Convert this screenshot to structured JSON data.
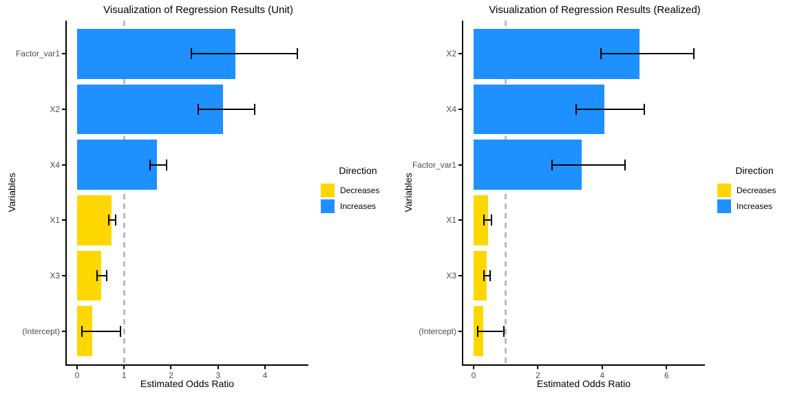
{
  "colors": {
    "increases": "#1E90FF",
    "decreases": "#FFD700",
    "reference_line": "#BBBBBB",
    "axis": "#000000",
    "tick_label": "#4D4D4D"
  },
  "legend": {
    "title": "Direction",
    "entries": [
      {
        "label": "Decreases",
        "direction": "decreases"
      },
      {
        "label": "Increases",
        "direction": "increases"
      }
    ]
  },
  "chart_data": [
    {
      "type": "bar",
      "orientation": "horizontal",
      "title": "Visualization of Regression Results (Unit)",
      "xlabel": "Estimated Odds Ratio",
      "ylabel": "Variables",
      "grid": false,
      "legend_position": "right",
      "reference_line_x": 1,
      "x_ticks": [
        0,
        1,
        2,
        3,
        4
      ],
      "xlim": [
        0,
        4.69
      ],
      "categories": [
        "Factor_var1",
        "X2",
        "X4",
        "X1",
        "X3",
        "(Intercept)"
      ],
      "values": [
        3.37,
        3.1,
        1.7,
        0.74,
        0.52,
        0.32
      ],
      "ci_low": [
        2.44,
        2.58,
        1.55,
        0.68,
        0.43,
        0.1
      ],
      "ci_high": [
        4.69,
        3.78,
        1.9,
        0.82,
        0.63,
        0.93
      ],
      "directions": [
        "increases",
        "increases",
        "increases",
        "decreases",
        "decreases",
        "decreases"
      ]
    },
    {
      "type": "bar",
      "orientation": "horizontal",
      "title": "Visualization of Regression Results (Realized)",
      "xlabel": "Estimated Odds Ratio",
      "ylabel": "Variables",
      "grid": false,
      "legend_position": "right",
      "reference_line_x": 1,
      "x_ticks": [
        0,
        2,
        4,
        6
      ],
      "xlim": [
        0,
        6.85
      ],
      "categories": [
        "X2",
        "X4",
        "Factor_var1",
        "X1",
        "X3",
        "(Intercept)"
      ],
      "values": [
        5.16,
        4.07,
        3.37,
        0.45,
        0.41,
        0.31
      ],
      "ci_low": [
        3.96,
        3.19,
        2.45,
        0.32,
        0.32,
        0.12
      ],
      "ci_high": [
        6.85,
        5.3,
        4.71,
        0.56,
        0.52,
        0.95
      ],
      "directions": [
        "increases",
        "increases",
        "increases",
        "decreases",
        "decreases",
        "decreases"
      ]
    }
  ]
}
